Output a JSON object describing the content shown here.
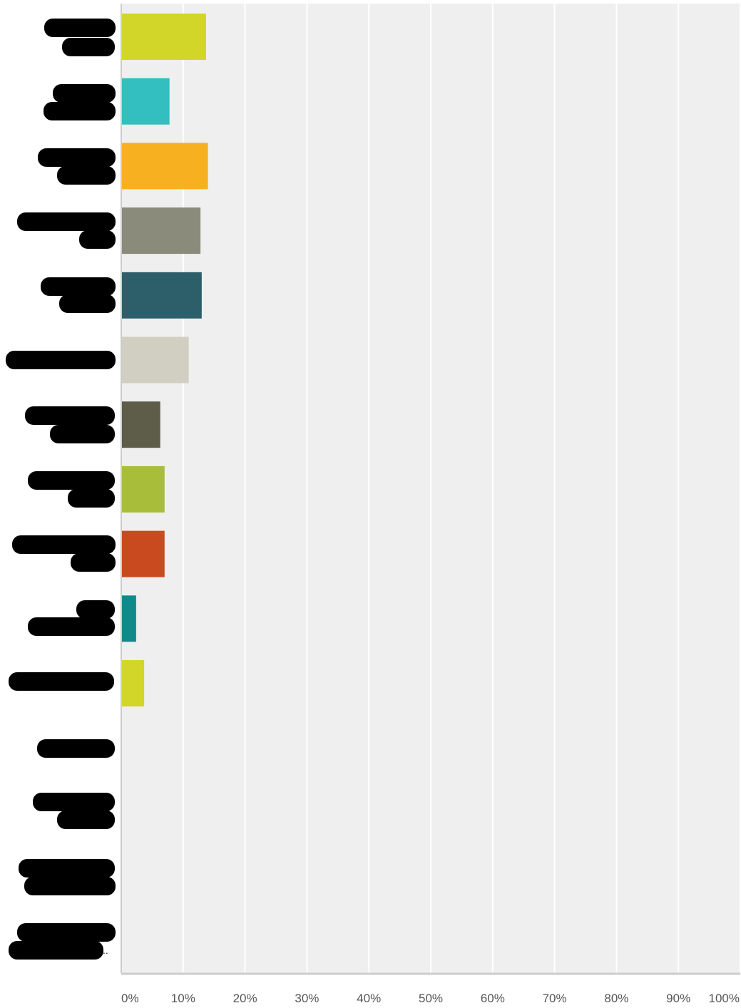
{
  "chart_data": {
    "type": "bar",
    "orientation": "horizontal",
    "title": "",
    "xlabel": "",
    "ylabel": "",
    "xlim": [
      0,
      100
    ],
    "x_ticks": [
      "0%",
      "10%",
      "20%",
      "30%",
      "40%",
      "50%",
      "60%",
      "70%",
      "80%",
      "90%",
      "100%"
    ],
    "grid": true,
    "legend": "none",
    "categories_redacted": true,
    "truncated_label_marker": "..",
    "values": [
      13.7,
      7.8,
      14.0,
      12.8,
      13.0,
      10.9,
      6.3,
      7.0,
      7.0,
      2.4,
      3.7,
      0,
      0,
      0,
      0
    ],
    "bar_colors": [
      "#d1d628",
      "#33bfbf",
      "#f7b020",
      "#8b8b7b",
      "#2d5f6b",
      "#d0cfc1",
      "#5e5d4a",
      "#a8bd3a",
      "#c94a1f",
      "#0f8a8a",
      "#d1d628",
      "#d1d628",
      "#33bfbf",
      "#f7b020",
      "#8b8b7b"
    ],
    "plot_background": "#efefef",
    "grid_color": "#ffffff",
    "axis_color": "#cccccc"
  }
}
